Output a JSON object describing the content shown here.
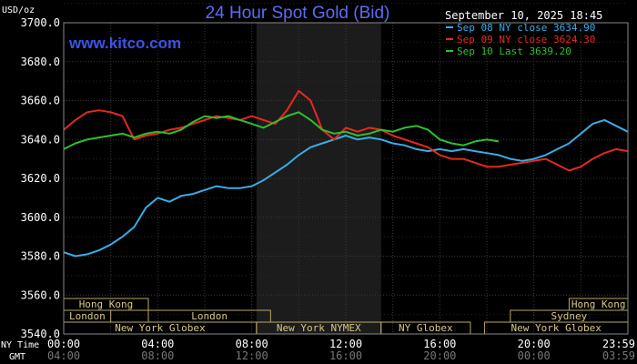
{
  "chart_data": {
    "type": "line",
    "title": "24 Hour Spot Gold (Bid)",
    "watermark": "www.kitco.com",
    "timestamp": "September 10, 2025 18:45",
    "ylabel": "USD/oz",
    "ylim": [
      3540,
      3700
    ],
    "y_ticks": [
      "3700.0",
      "3680.0",
      "3660.0",
      "3640.0",
      "3620.0",
      "3600.0",
      "3580.0",
      "3560.0",
      "3540.0"
    ],
    "x_hours_range": [
      0,
      24
    ],
    "ny_time_label": "NY Time",
    "gmt_label": "GMT",
    "ny_time_ticks": [
      "00:00",
      "04:00",
      "08:00",
      "12:00",
      "16:00",
      "20:00",
      "23:59"
    ],
    "gmt_ticks": [
      "04:00",
      "08:00",
      "12:00",
      "16:00",
      "20:00",
      "00:00",
      "03:59"
    ],
    "grid": true,
    "legend_position": "top-right",
    "shaded_range_hours": [
      8.2,
      13.5
    ],
    "series": [
      {
        "name": "Sep 08 NY close 3634.90",
        "color": "#37aee8",
        "points": [
          [
            0,
            3582
          ],
          [
            0.5,
            3580
          ],
          [
            1,
            3581
          ],
          [
            1.5,
            3583
          ],
          [
            2,
            3586
          ],
          [
            2.5,
            3590
          ],
          [
            3,
            3595
          ],
          [
            3.5,
            3605
          ],
          [
            4,
            3610
          ],
          [
            4.5,
            3608
          ],
          [
            5,
            3611
          ],
          [
            5.5,
            3612
          ],
          [
            6,
            3614
          ],
          [
            6.5,
            3616
          ],
          [
            7,
            3615
          ],
          [
            7.5,
            3615
          ],
          [
            8,
            3616
          ],
          [
            8.5,
            3619
          ],
          [
            9,
            3623
          ],
          [
            9.5,
            3627
          ],
          [
            10,
            3632
          ],
          [
            10.5,
            3636
          ],
          [
            11,
            3638
          ],
          [
            11.5,
            3640
          ],
          [
            12,
            3642
          ],
          [
            12.5,
            3640
          ],
          [
            13,
            3641
          ],
          [
            13.5,
            3640
          ],
          [
            14,
            3638
          ],
          [
            14.5,
            3637
          ],
          [
            15,
            3635
          ],
          [
            15.5,
            3634
          ],
          [
            16,
            3635
          ],
          [
            16.5,
            3634
          ],
          [
            17,
            3635
          ],
          [
            17.5,
            3634
          ],
          [
            18,
            3633
          ],
          [
            18.5,
            3632
          ],
          [
            19,
            3630
          ],
          [
            19.5,
            3629
          ],
          [
            20,
            3630
          ],
          [
            20.5,
            3632
          ],
          [
            21,
            3635
          ],
          [
            21.5,
            3638
          ],
          [
            22,
            3643
          ],
          [
            22.5,
            3648
          ],
          [
            23,
            3650
          ],
          [
            23.5,
            3647
          ],
          [
            23.99,
            3644
          ]
        ]
      },
      {
        "name": "Sep 09 NY close 3624.30",
        "color": "#e8291c",
        "points": [
          [
            0,
            3645
          ],
          [
            0.5,
            3650
          ],
          [
            1,
            3654
          ],
          [
            1.5,
            3655
          ],
          [
            2,
            3654
          ],
          [
            2.5,
            3652
          ],
          [
            3,
            3640
          ],
          [
            3.5,
            3642
          ],
          [
            4,
            3643
          ],
          [
            4.5,
            3645
          ],
          [
            5,
            3646
          ],
          [
            5.5,
            3648
          ],
          [
            6,
            3650
          ],
          [
            6.5,
            3652
          ],
          [
            7,
            3651
          ],
          [
            7.5,
            3650
          ],
          [
            8,
            3652
          ],
          [
            8.5,
            3650
          ],
          [
            9,
            3648
          ],
          [
            9.5,
            3655
          ],
          [
            10,
            3665
          ],
          [
            10.5,
            3660
          ],
          [
            11,
            3645
          ],
          [
            11.5,
            3640
          ],
          [
            12,
            3646
          ],
          [
            12.5,
            3644
          ],
          [
            13,
            3646
          ],
          [
            13.5,
            3645
          ],
          [
            14,
            3642
          ],
          [
            14.5,
            3640
          ],
          [
            15,
            3638
          ],
          [
            15.5,
            3636
          ],
          [
            16,
            3632
          ],
          [
            16.5,
            3630
          ],
          [
            17,
            3630
          ],
          [
            17.5,
            3628
          ],
          [
            18,
            3626
          ],
          [
            18.5,
            3626
          ],
          [
            19,
            3627
          ],
          [
            19.5,
            3628
          ],
          [
            20,
            3629
          ],
          [
            20.5,
            3630
          ],
          [
            21,
            3627
          ],
          [
            21.5,
            3624
          ],
          [
            22,
            3626
          ],
          [
            22.5,
            3630
          ],
          [
            23,
            3633
          ],
          [
            23.5,
            3635
          ],
          [
            23.99,
            3634
          ]
        ]
      },
      {
        "name": "Sep 10 Last 3639.20",
        "color": "#2ec12e",
        "points": [
          [
            0,
            3635
          ],
          [
            0.5,
            3638
          ],
          [
            1,
            3640
          ],
          [
            1.5,
            3641
          ],
          [
            2,
            3642
          ],
          [
            2.5,
            3643
          ],
          [
            3,
            3641
          ],
          [
            3.5,
            3643
          ],
          [
            4,
            3644
          ],
          [
            4.5,
            3643
          ],
          [
            5,
            3645
          ],
          [
            5.5,
            3649
          ],
          [
            6,
            3652
          ],
          [
            6.5,
            3651
          ],
          [
            7,
            3652
          ],
          [
            7.5,
            3650
          ],
          [
            8,
            3648
          ],
          [
            8.5,
            3646
          ],
          [
            9,
            3649
          ],
          [
            9.5,
            3652
          ],
          [
            10,
            3654
          ],
          [
            10.5,
            3650
          ],
          [
            11,
            3645
          ],
          [
            11.5,
            3643
          ],
          [
            12,
            3644
          ],
          [
            12.5,
            3642
          ],
          [
            13,
            3643
          ],
          [
            13.5,
            3645
          ],
          [
            14,
            3644
          ],
          [
            14.5,
            3646
          ],
          [
            15,
            3647
          ],
          [
            15.5,
            3645
          ],
          [
            16,
            3640
          ],
          [
            16.5,
            3638
          ],
          [
            17,
            3637
          ],
          [
            17.5,
            3639
          ],
          [
            18,
            3640
          ],
          [
            18.5,
            3639
          ]
        ]
      }
    ],
    "sessions": [
      {
        "label": "Hong Kong",
        "start": 0,
        "end": 3.6,
        "row": 0
      },
      {
        "label": "Hong Kong",
        "start": 21.5,
        "end": 24,
        "row": 0
      },
      {
        "label": "London",
        "start": 0,
        "end": 2,
        "row": 1
      },
      {
        "label": "London",
        "start": 3.6,
        "end": 8.8,
        "row": 1
      },
      {
        "label": "Sydney",
        "start": 19,
        "end": 24,
        "row": 1
      },
      {
        "label": "New York Globex",
        "start": 0,
        "end": 8.2,
        "row": 2
      },
      {
        "label": "New York NYMEX",
        "start": 8.2,
        "end": 13.5,
        "row": 2
      },
      {
        "label": "NY Globex",
        "start": 13.5,
        "end": 17.3,
        "row": 2
      },
      {
        "label": "New York Globex",
        "start": 17.9,
        "end": 24,
        "row": 2
      }
    ]
  }
}
